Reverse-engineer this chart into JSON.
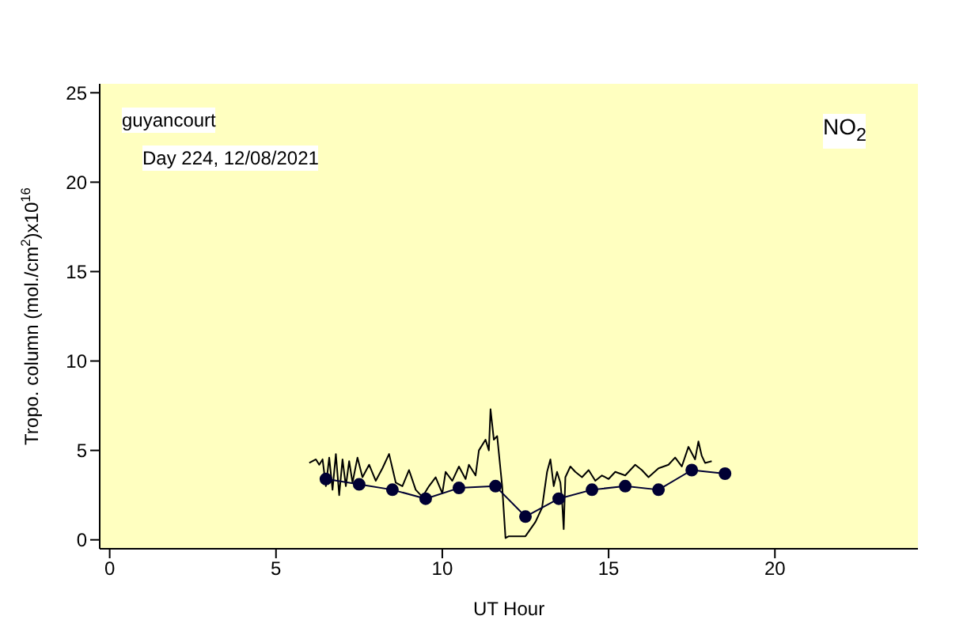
{
  "chart_data": {
    "type": "line",
    "xlabel": "UT Hour",
    "ylabel": "Tropo. column (mol./cm$^{2}$)x10$^{16}$",
    "annotations": [
      "guyancourt",
      "Day 224, 12/08/2021",
      "NO$_{2}$"
    ],
    "xlim": [
      -0.3,
      24.3
    ],
    "xticks": [
      0,
      5,
      10,
      15,
      20
    ],
    "ylim": [
      -0.5,
      25.5
    ],
    "yticks": [
      0,
      5,
      10,
      15,
      20,
      25
    ],
    "legend": false,
    "series": [
      {
        "color": "#000000",
        "marker": "none",
        "x": [
          6.0,
          6.2,
          6.3,
          6.4,
          6.5,
          6.6,
          6.7,
          6.8,
          6.9,
          7.0,
          7.1,
          7.2,
          7.3,
          7.45,
          7.6,
          7.8,
          8.0,
          8.2,
          8.4,
          8.6,
          8.8,
          9.0,
          9.2,
          9.4,
          9.6,
          9.8,
          10.0,
          10.1,
          10.3,
          10.5,
          10.7,
          10.8,
          11.0,
          11.1,
          11.3,
          11.4,
          11.45,
          11.55,
          11.65,
          11.8,
          11.9,
          12.0,
          12.5,
          12.8,
          13.0,
          13.15,
          13.25,
          13.35,
          13.45,
          13.55,
          13.6,
          13.65,
          13.7,
          13.85,
          14.0,
          14.2,
          14.4,
          14.6,
          14.8,
          15.0,
          15.2,
          15.5,
          15.8,
          16.0,
          16.2,
          16.5,
          16.8,
          17.0,
          17.2,
          17.4,
          17.6,
          17.7,
          17.8,
          17.9,
          18.1
        ],
        "values": [
          4.3,
          4.5,
          4.2,
          4.5,
          3.0,
          4.6,
          2.8,
          4.8,
          2.5,
          4.5,
          3.0,
          4.4,
          3.2,
          4.6,
          3.5,
          4.2,
          3.3,
          4.0,
          4.8,
          3.2,
          3.0,
          3.9,
          2.8,
          2.4,
          3.0,
          3.5,
          2.6,
          3.8,
          3.3,
          4.1,
          3.4,
          4.2,
          3.6,
          5.0,
          5.6,
          5.0,
          7.3,
          5.6,
          5.8,
          3.0,
          0.1,
          0.2,
          0.2,
          1.0,
          1.8,
          3.8,
          4.5,
          3.0,
          3.8,
          3.2,
          2.2,
          0.6,
          3.5,
          4.1,
          3.8,
          3.5,
          3.9,
          3.3,
          3.6,
          3.4,
          3.8,
          3.6,
          4.2,
          3.9,
          3.5,
          4.0,
          4.2,
          4.6,
          4.1,
          5.2,
          4.5,
          5.5,
          4.7,
          4.3,
          4.4
        ]
      },
      {
        "color": "#000033",
        "marker": "circle",
        "x": [
          6.5,
          7.5,
          8.5,
          9.5,
          10.5,
          11.6,
          12.5,
          13.5,
          14.5,
          15.5,
          16.5,
          17.5,
          18.5
        ],
        "values": [
          3.4,
          3.1,
          2.8,
          2.3,
          2.9,
          3.0,
          1.3,
          2.3,
          2.8,
          3.0,
          2.8,
          3.9,
          3.7
        ]
      }
    ]
  }
}
